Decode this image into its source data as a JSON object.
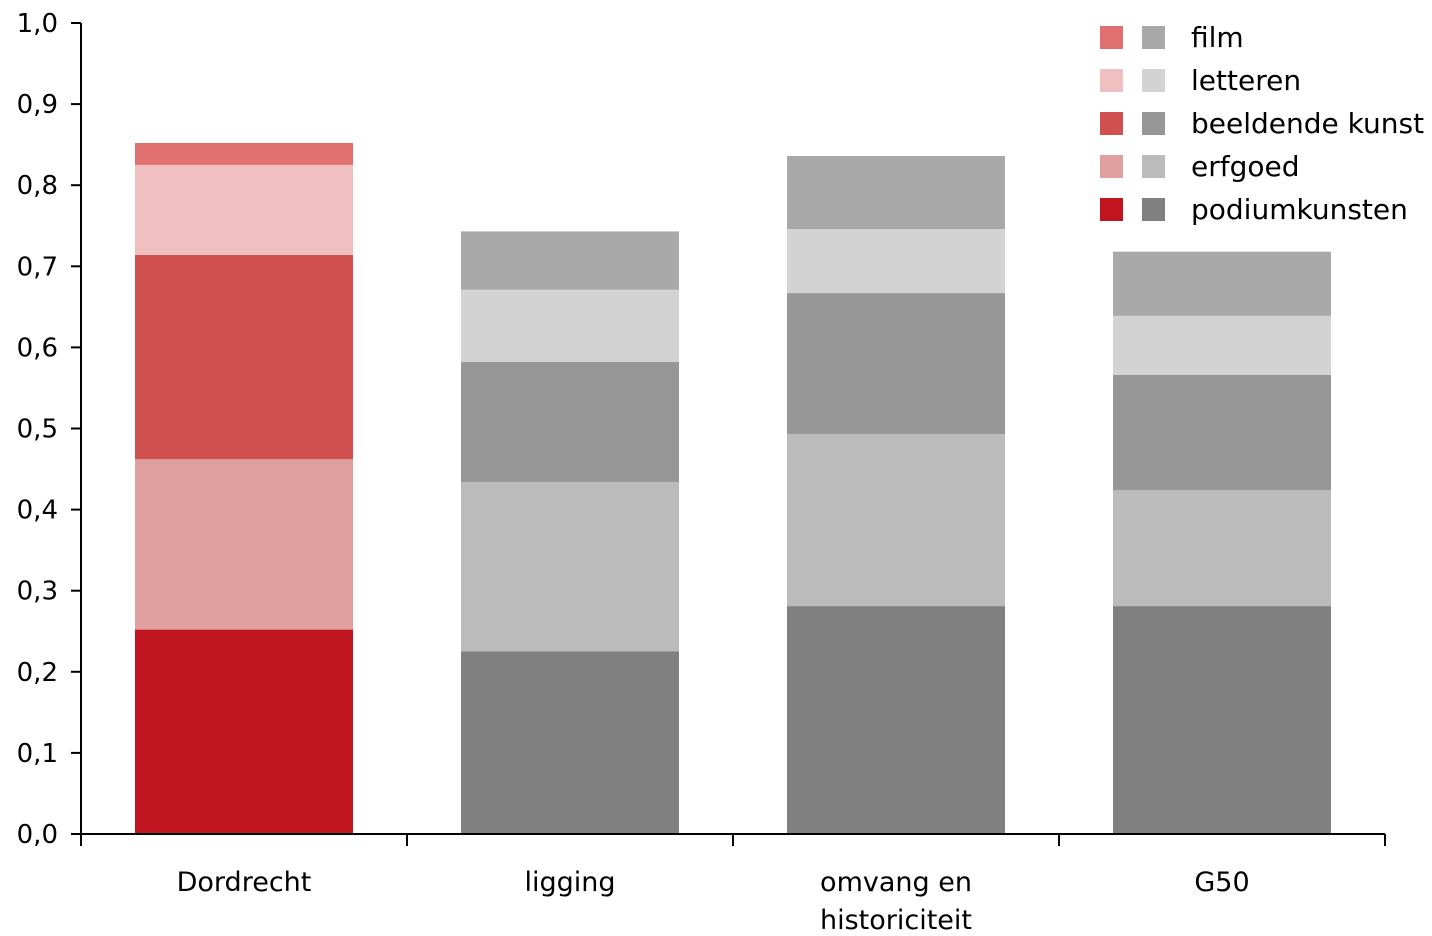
{
  "chart_data": {
    "type": "bar",
    "stacked": true,
    "categories": [
      [
        "Dordrecht"
      ],
      [
        "ligging"
      ],
      [
        "omvang en",
        "historiciteit"
      ],
      [
        "G50"
      ]
    ],
    "series": [
      {
        "name": "podiumkunsten",
        "values": [
          0.252,
          0.225,
          0.281,
          0.281
        ],
        "color_first": "#c0141e",
        "color_rest": "#808080"
      },
      {
        "name": "erfgoed",
        "values": [
          0.21,
          0.209,
          0.212,
          0.143
        ],
        "color_first": "#e0a0a0",
        "color_rest": "#bbbbbb"
      },
      {
        "name": "beeldende kunst",
        "values": [
          0.252,
          0.148,
          0.174,
          0.142
        ],
        "color_first": "#d05050",
        "color_rest": "#979797"
      },
      {
        "name": "letteren",
        "values": [
          0.111,
          0.089,
          0.079,
          0.073
        ],
        "color_first": "#f0c0c0",
        "color_rest": "#d3d3d3"
      },
      {
        "name": "film",
        "values": [
          0.027,
          0.072,
          0.09,
          0.079
        ],
        "color_first": "#e07070",
        "color_rest": "#a9a9a9"
      }
    ],
    "legend_order": [
      "film",
      "letteren",
      "beeldende kunst",
      "erfgoed",
      "podiumkunsten"
    ],
    "y_ticks": [
      "0,0",
      "0,1",
      "0,2",
      "0,3",
      "0,4",
      "0,5",
      "0,6",
      "0,7",
      "0,8",
      "0,9",
      "1,0"
    ],
    "ylim": [
      0,
      1.0
    ],
    "grid": false,
    "legend_position": "top-right"
  }
}
